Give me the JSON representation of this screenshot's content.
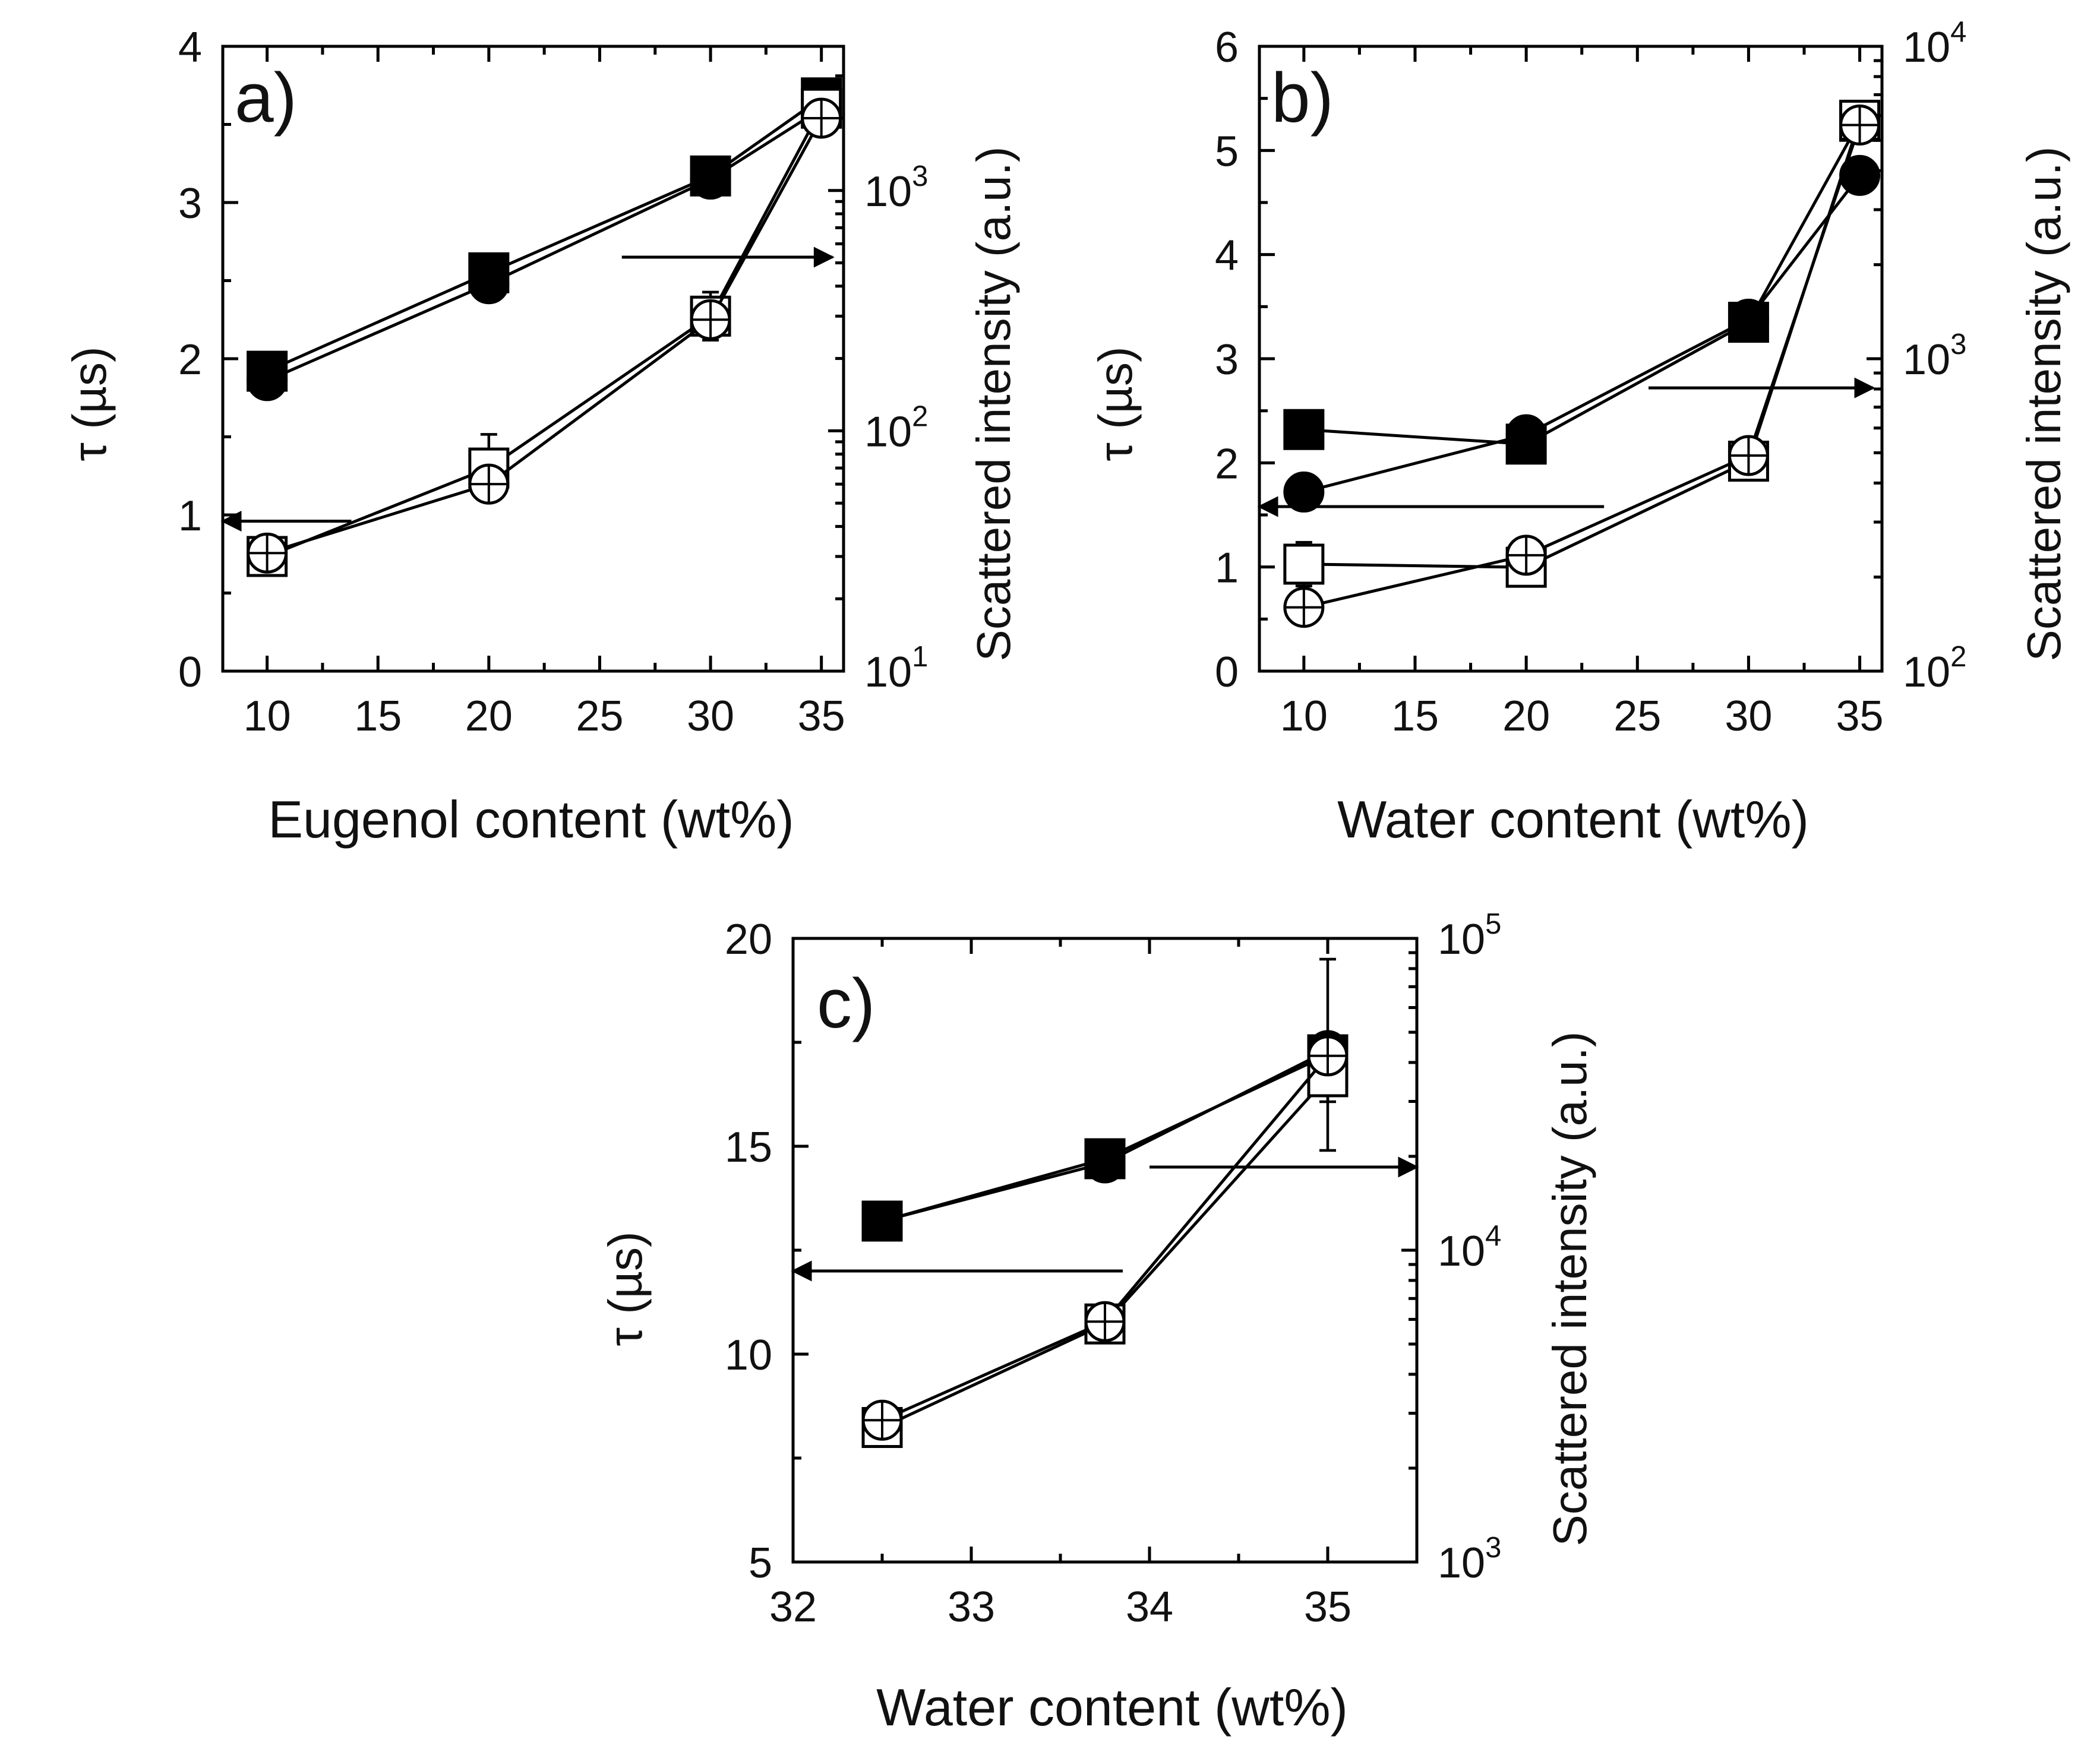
{
  "figure": {
    "background": "#ffffff",
    "ink": "#000000"
  },
  "chart_data": [
    {
      "id": "a",
      "type": "line",
      "panel_label": "a)",
      "xlabel": "Eugenol content (wt%)",
      "ylabel_left": "τ (µs)",
      "ylabel_right": "Scattered intensity (a.u.)",
      "xlim": [
        8,
        36
      ],
      "xticks": [
        10,
        15,
        20,
        25,
        30,
        35
      ],
      "ylim_left": [
        0,
        4
      ],
      "yticks_left": [
        0,
        1,
        2,
        3,
        4
      ],
      "ylim_right_log10": [
        1,
        3.6
      ],
      "yticks_right": [
        {
          "exp": 1,
          "label": "10",
          "sup": "1"
        },
        {
          "exp": 2,
          "label": "10",
          "sup": "2"
        },
        {
          "exp": 3,
          "label": "10",
          "sup": "3"
        }
      ],
      "series": [
        {
          "name": "tau (filled square)",
          "axis": "left",
          "marker": "square",
          "filled": true,
          "x": [
            10,
            20,
            30,
            35
          ],
          "y": [
            1.92,
            2.55,
            3.17,
            3.67
          ],
          "err": [
            0,
            0,
            0,
            0
          ]
        },
        {
          "name": "tau (filled circle)",
          "axis": "left",
          "marker": "circle",
          "filled": true,
          "x": [
            10,
            20,
            30,
            35
          ],
          "y": [
            1.86,
            2.48,
            3.15,
            3.6
          ],
          "err": [
            0,
            0,
            0,
            0
          ]
        },
        {
          "name": "scattered intensity (open square)",
          "axis": "right",
          "marker": "square",
          "filled": false,
          "x": [
            10,
            20,
            30,
            35
          ],
          "y": [
            30,
            70,
            300,
            2200
          ],
          "err": [
            0.07,
            0.14,
            0.1,
            0.05
          ]
        },
        {
          "name": "scattered intensity (open crossed circle)",
          "axis": "right",
          "marker": "crossed-circle",
          "filled": false,
          "x": [
            10,
            20,
            30,
            35
          ],
          "y": [
            31,
            60,
            290,
            2000
          ],
          "err": [
            0.04,
            0.04,
            0.04,
            0.04
          ]
        }
      ],
      "arrows": [
        {
          "points_to": "left",
          "x_from": 13.8,
          "x_to": 8.0,
          "y_left": 0.96
        },
        {
          "points_to": "right",
          "x_from": 26.0,
          "x_to": 35.5,
          "y_left": 2.65
        }
      ]
    },
    {
      "id": "b",
      "type": "line",
      "panel_label": "b)",
      "xlabel": "Water content (wt%)",
      "ylabel_left": "τ (µs)",
      "ylabel_right": "Scattered intensity (a.u.)",
      "xlim": [
        8,
        36
      ],
      "xticks": [
        10,
        15,
        20,
        25,
        30,
        35
      ],
      "ylim_left": [
        0,
        6
      ],
      "yticks_left": [
        0,
        1,
        2,
        3,
        4,
        5,
        6
      ],
      "ylim_right_log10": [
        2,
        4
      ],
      "yticks_right": [
        {
          "exp": 2,
          "label": "10",
          "sup": "2"
        },
        {
          "exp": 3,
          "label": "10",
          "sup": "3"
        },
        {
          "exp": 4,
          "label": "10",
          "sup": "4"
        }
      ],
      "series": [
        {
          "name": "tau (filled square)",
          "axis": "left",
          "marker": "square",
          "filled": true,
          "x": [
            10,
            20,
            30,
            35
          ],
          "y": [
            2.32,
            2.18,
            3.35,
            5.28
          ],
          "err": [
            0,
            0,
            0,
            0
          ]
        },
        {
          "name": "tau (filled circle)",
          "axis": "left",
          "marker": "circle",
          "filled": true,
          "x": [
            10,
            20,
            30,
            35
          ],
          "y": [
            1.72,
            2.27,
            3.38,
            4.76
          ],
          "err": [
            0,
            0,
            0,
            0
          ]
        },
        {
          "name": "scattered intensity (open square)",
          "axis": "right",
          "marker": "square",
          "filled": false,
          "x": [
            10,
            20,
            30,
            35
          ],
          "y": [
            220,
            215,
            470,
            5800
          ],
          "err": [
            0.07,
            0.04,
            0.04,
            0.04
          ]
        },
        {
          "name": "scattered intensity (open crossed circle)",
          "axis": "right",
          "marker": "crossed-circle",
          "filled": false,
          "x": [
            10,
            20,
            30,
            35
          ],
          "y": [
            160,
            235,
            490,
            5600
          ],
          "err": [
            0.04,
            0.04,
            0.04,
            0.04
          ]
        }
      ],
      "arrows": [
        {
          "points_to": "left",
          "x_from": 23.5,
          "x_to": 8.0,
          "y_left": 1.58
        },
        {
          "points_to": "right",
          "x_from": 25.5,
          "x_to": 35.6,
          "y_left": 2.72
        }
      ]
    },
    {
      "id": "c",
      "type": "line",
      "panel_label": "c)",
      "xlabel": "Water content (wt%)",
      "ylabel_left": "τ (µs)",
      "ylabel_right": "Scattered intensity (a.u.)",
      "xlim": [
        32,
        35.5
      ],
      "xticks": [
        32,
        33,
        34,
        35
      ],
      "ylim_left": [
        5,
        20
      ],
      "yticks_left": [
        5,
        10,
        15,
        20
      ],
      "ylim_right_log10": [
        3,
        5
      ],
      "yticks_right": [
        {
          "exp": 3,
          "label": "10",
          "sup": "3"
        },
        {
          "exp": 4,
          "label": "10",
          "sup": "4"
        },
        {
          "exp": 5,
          "label": "10",
          "sup": "5"
        }
      ],
      "series": [
        {
          "name": "tau (filled square)",
          "axis": "left",
          "marker": "square",
          "filled": true,
          "x": [
            32.5,
            33.75,
            35
          ],
          "y": [
            13.2,
            14.7,
            17.2
          ],
          "err": [
            0,
            0,
            2.3
          ]
        },
        {
          "name": "tau (filled circle)",
          "axis": "left",
          "marker": "circle",
          "filled": true,
          "x": [
            32.5,
            33.75,
            35
          ],
          "y": [
            13.2,
            14.6,
            17.3
          ],
          "err": [
            0,
            0,
            0
          ]
        },
        {
          "name": "scattered intensity (open square)",
          "axis": "right",
          "marker": "square",
          "filled": false,
          "x": [
            32.5,
            33.75,
            35
          ],
          "y": [
            2700,
            5800,
            36000
          ],
          "err": [
            0.04,
            0.06,
            0.08
          ]
        },
        {
          "name": "scattered intensity (open crossed circle)",
          "axis": "right",
          "marker": "crossed-circle",
          "filled": false,
          "x": [
            32.5,
            33.75,
            35
          ],
          "y": [
            2850,
            5900,
            42000
          ],
          "err": [
            0.04,
            0.04,
            0.04
          ]
        }
      ],
      "arrows": [
        {
          "points_to": "left",
          "x_from": 33.85,
          "x_to": 32.0,
          "y_left": 12.0
        },
        {
          "points_to": "right",
          "x_from": 34.0,
          "x_to": 35.5,
          "y_left": 14.5
        }
      ]
    }
  ]
}
